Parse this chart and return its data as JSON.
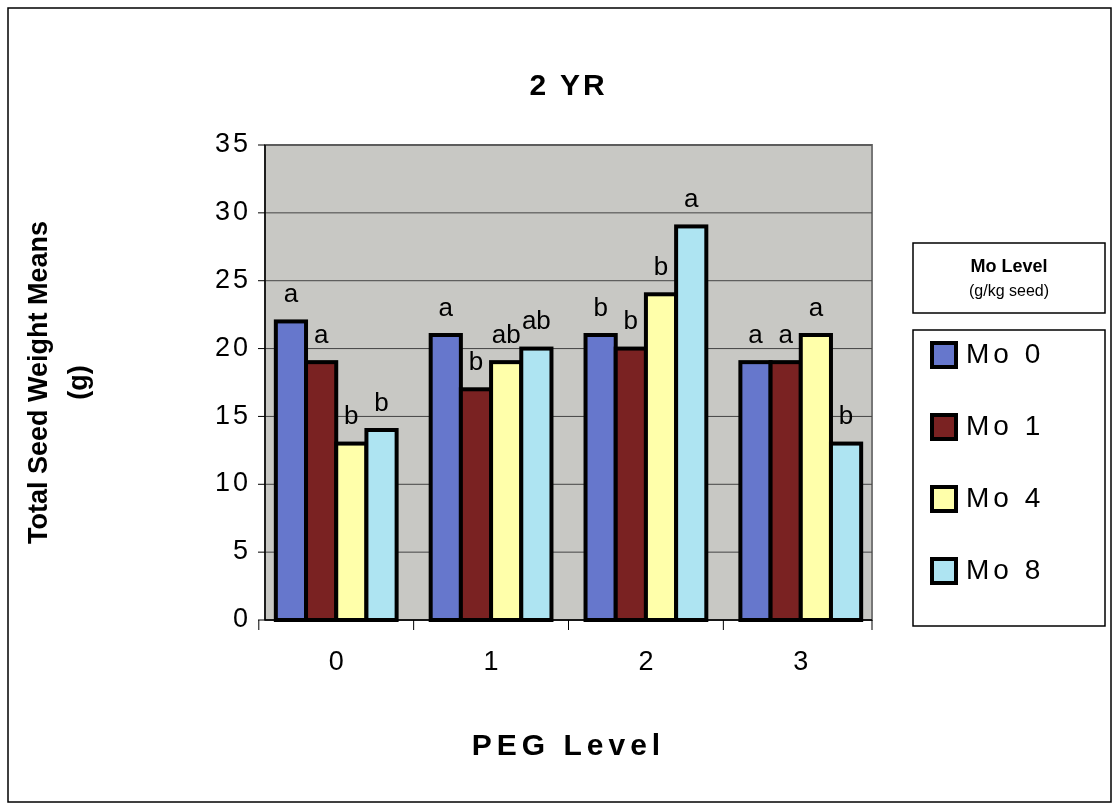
{
  "chart_data": {
    "type": "bar",
    "title": "2 YR",
    "xlabel": "PEG Level",
    "ylabel": "Total Seed Weight Means (g)",
    "legend_title": "Mo Level\n(g/kg seed)",
    "categories": [
      "0",
      "1",
      "2",
      "3"
    ],
    "series": [
      {
        "name": "Mo 0",
        "color": "#6677cc",
        "values": [
          22,
          21,
          21,
          19
        ]
      },
      {
        "name": "Mo 1",
        "color": "#7a2222",
        "values": [
          19,
          17,
          20,
          19
        ]
      },
      {
        "name": "Mo 4",
        "color": "#ffffaa",
        "values": [
          13,
          19,
          24,
          21
        ]
      },
      {
        "name": "Mo 8",
        "color": "#aee4f2",
        "values": [
          14,
          20,
          29,
          13
        ]
      }
    ],
    "ylim": [
      0,
      35
    ],
    "yticks": [
      0,
      5,
      10,
      15,
      20,
      25,
      30,
      35
    ],
    "grid": "y",
    "legend": "right",
    "annotations": [
      "a",
      "a",
      "b",
      "b",
      "a",
      "b",
      "ab",
      "ab",
      "b",
      "b",
      "b",
      "a",
      "a",
      "a",
      "a",
      "b"
    ]
  }
}
